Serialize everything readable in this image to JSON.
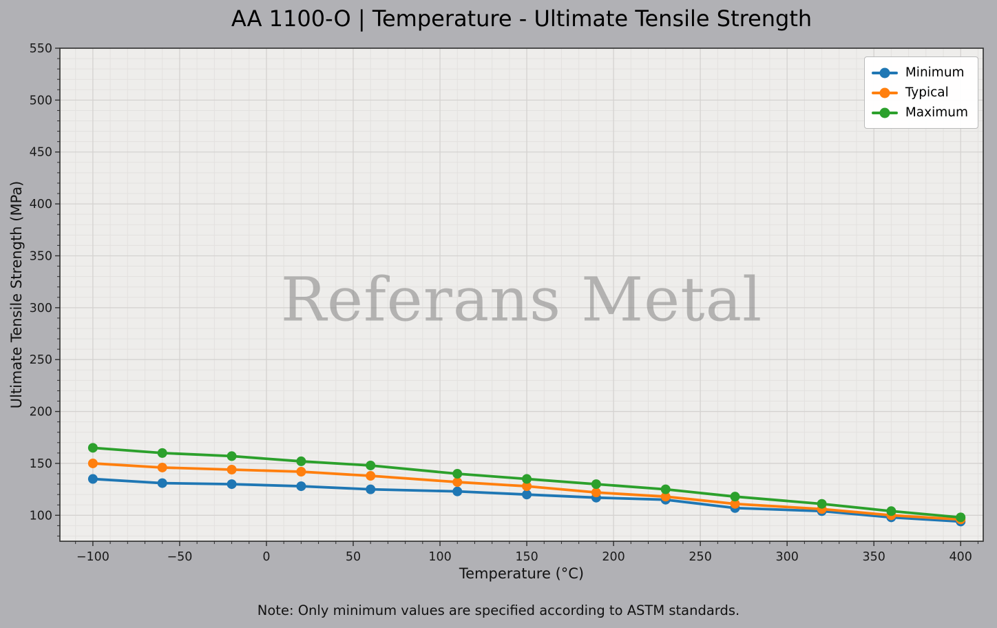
{
  "title": "AA 1100-O | Temperature - Ultimate Tensile Strength",
  "watermark": "Referans Metal",
  "note": "Note: Only minimum values are specified according to ASTM standards.",
  "colors": {
    "figure_background": "#b1b1b5",
    "plot_background": "#eeedeb",
    "grid_major": "#d4d2d0",
    "grid_minor": "#e3e1df",
    "spine": "#2b2b2b",
    "tick_label": "#1a1a1a",
    "minimum_series": "#1f77b4",
    "typical_series": "#ff7f0e",
    "maximum_series": "#2ca02c"
  },
  "chart_data": {
    "type": "line",
    "title": "AA 1100-O | Temperature - Ultimate Tensile Strength",
    "xlabel": "Temperature (°C)",
    "ylabel": "Ultimate Tensile Strength (MPa)",
    "x": [
      -100,
      -60,
      -20,
      20,
      60,
      110,
      150,
      190,
      230,
      270,
      320,
      360,
      400
    ],
    "series": [
      {
        "name": "Minimum",
        "color": "#1f77b4",
        "values": [
          135,
          131,
          130,
          128,
          125,
          123,
          120,
          117,
          115,
          107,
          104,
          98,
          94
        ]
      },
      {
        "name": "Typical",
        "color": "#ff7f0e",
        "values": [
          150,
          146,
          144,
          142,
          138,
          132,
          128,
          122,
          118,
          111,
          106,
          100,
          96
        ]
      },
      {
        "name": "Maximum",
        "color": "#2ca02c",
        "values": [
          165,
          160,
          157,
          152,
          148,
          140,
          135,
          130,
          125,
          118,
          111,
          104,
          98
        ]
      }
    ],
    "xlim": [
      -119,
      413
    ],
    "ylim": [
      75,
      550
    ],
    "x_ticks": [
      -100,
      -50,
      0,
      50,
      100,
      150,
      200,
      250,
      300,
      350,
      400
    ],
    "x_tick_labels": [
      "−100",
      "−50",
      "0",
      "50",
      "100",
      "150",
      "200",
      "250",
      "300",
      "350",
      "400"
    ],
    "y_ticks": [
      100,
      150,
      200,
      250,
      300,
      350,
      400,
      450,
      500,
      550
    ],
    "y_tick_labels": [
      "100",
      "150",
      "200",
      "250",
      "300",
      "350",
      "400",
      "450",
      "500",
      "550"
    ],
    "minor_tick_step": 10,
    "grid": "major+minor",
    "legend_position": "upper right",
    "legend_labels": [
      "Minimum",
      "Typical",
      "Maximum"
    ],
    "watermark": "Referans Metal",
    "note": "Note: Only minimum values are specified according to ASTM standards."
  }
}
